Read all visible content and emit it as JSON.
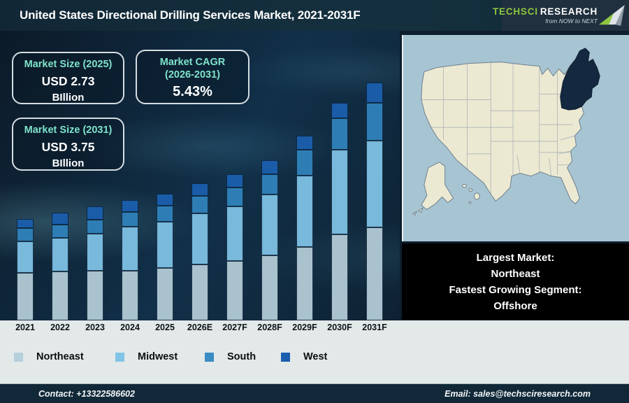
{
  "header": {
    "title": "United States Directional Drilling Services Market, 2021-2031F",
    "logo": {
      "brand_part1": "TechSci",
      "brand_part2": "Research",
      "tagline": "from NOW to NEXT"
    }
  },
  "info_boxes": [
    {
      "label": "Market Size (2025)",
      "value": "USD 2.73",
      "unit": "BIllion"
    },
    {
      "label_line1": "Market CAGR",
      "label_line2": "(2026-2031)",
      "value": "5.43%"
    },
    {
      "label": "Market Size (2031)",
      "value": "USD 3.75",
      "unit": "BIllion"
    }
  ],
  "chart_data": {
    "type": "bar",
    "stacked": true,
    "title": "United States Directional Drilling Services Market, 2021-2031F",
    "categories": [
      "2021",
      "2022",
      "2023",
      "2024",
      "2025",
      "2026E",
      "2027F",
      "2028F",
      "2029F",
      "2030F",
      "2031F"
    ],
    "series": [
      {
        "name": "Northeast",
        "color": "#a9c2ce",
        "values": [
          68,
          70,
          71,
          71,
          75,
          80,
          85,
          93,
          105,
          123,
          133
        ]
      },
      {
        "name": "Midwest",
        "color": "#78b9dc",
        "values": [
          45,
          48,
          53,
          63,
          66,
          73,
          78,
          87,
          102,
          121,
          124
        ]
      },
      {
        "name": "South",
        "color": "#2e7eb5",
        "values": [
          19,
          19,
          20,
          21,
          23,
          25,
          27,
          29,
          37,
          45,
          54
        ]
      },
      {
        "name": "West",
        "color": "#1a5ca8",
        "values": [
          13,
          17,
          19,
          17,
          17,
          18,
          19,
          20,
          20,
          22,
          29
        ]
      }
    ],
    "value_axis": "none (values are relative bar heights in pixels; chart displays no numeric y-axis)",
    "annotations": {
      "market_size_2025": "USD 2.73 Billion",
      "market_size_2031": "USD 3.75 Billion",
      "cagr_2026_2031": "5.43%"
    },
    "legend_position": "bottom",
    "grid": false
  },
  "legend": {
    "items": [
      {
        "label": "Northeast",
        "color": "#b5cfdc"
      },
      {
        "label": "Midwest",
        "color": "#82c4e6"
      },
      {
        "label": "South",
        "color": "#3a8cc4"
      },
      {
        "label": "West",
        "color": "#1a5fae"
      }
    ]
  },
  "map_caption": {
    "line1": "Largest Market:",
    "line2": "Northeast",
    "line3": "Fastest Growing Segment:",
    "line4": "Offshore"
  },
  "footer": {
    "contact": "Contact: +13322586602",
    "email": "Email: sales@techsciresearch.com"
  },
  "colors": {
    "header_bg": "#14303e",
    "chart_bg": "#0f2233",
    "accent_teal": "#7fe3cc",
    "logo_green": "#8dc63f",
    "map_ocean": "#a7c4d2",
    "map_land": "#ece9d3",
    "map_highlight": "#14293f",
    "bottom_bg": "#e3e8e9",
    "footer_bg": "#112838"
  }
}
